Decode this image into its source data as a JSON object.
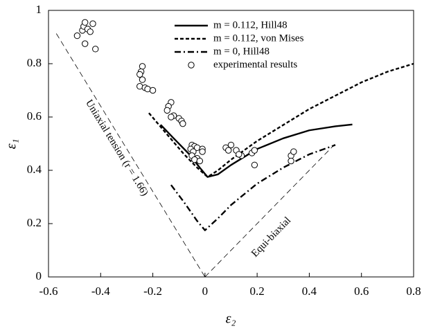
{
  "chart_data": {
    "type": "line",
    "xlabel": "ε₂",
    "ylabel": "ε₁",
    "xlim": [
      -0.6,
      0.8
    ],
    "xticks": [
      -0.6,
      -0.4,
      -0.2,
      0,
      0.2,
      0.4,
      0.6,
      0.8
    ],
    "ylim": [
      0,
      1
    ],
    "yticks": [
      0,
      0.2,
      0.4,
      0.6,
      0.8,
      1
    ],
    "grid": false,
    "legend": "top-right",
    "series": [
      {
        "name": "m = 0.112, Hill48",
        "color": "#000000",
        "style": "solid",
        "x": [
          -0.17,
          -0.12,
          -0.06,
          -0.02,
          0.01,
          0.05,
          0.1,
          0.2,
          0.3,
          0.4,
          0.5,
          0.565
        ],
        "values": [
          0.571,
          0.52,
          0.46,
          0.41,
          0.375,
          0.385,
          0.42,
          0.48,
          0.52,
          0.55,
          0.565,
          0.572
        ]
      },
      {
        "name": "m = 0.112, von Mises",
        "color": "#000000",
        "style": "dotted",
        "x": [
          -0.215,
          -0.15,
          -0.08,
          -0.03,
          0.01,
          0.05,
          0.1,
          0.2,
          0.3,
          0.4,
          0.5,
          0.6,
          0.7,
          0.8
        ],
        "values": [
          0.615,
          0.54,
          0.46,
          0.41,
          0.375,
          0.4,
          0.44,
          0.51,
          0.57,
          0.63,
          0.68,
          0.73,
          0.77,
          0.8
        ]
      },
      {
        "name": "m = 0, Hill48",
        "color": "#000000",
        "style": "dashdot",
        "x": [
          -0.13,
          -0.08,
          -0.03,
          0,
          0.05,
          0.1,
          0.2,
          0.3,
          0.4,
          0.5
        ],
        "values": [
          0.345,
          0.28,
          0.21,
          0.175,
          0.22,
          0.27,
          0.35,
          0.41,
          0.46,
          0.495
        ]
      },
      {
        "name": "experimental results",
        "color": "#000000",
        "style": "circles",
        "x": [
          -0.49,
          -0.47,
          -0.465,
          -0.46,
          -0.45,
          -0.44,
          -0.43,
          -0.46,
          -0.42,
          -0.24,
          -0.245,
          -0.25,
          -0.24,
          -0.25,
          -0.23,
          -0.22,
          -0.2,
          -0.13,
          -0.14,
          -0.145,
          -0.12,
          -0.13,
          -0.1,
          -0.09,
          -0.085,
          -0.05,
          -0.04,
          -0.055,
          -0.03,
          -0.045,
          -0.01,
          -0.05,
          -0.03,
          -0.04,
          -0.02,
          -0.01,
          0.08,
          0.1,
          0.09,
          0.12,
          0.14,
          0.13,
          0.18,
          0.19,
          0.19,
          0.33,
          0.34,
          0.33
        ],
        "values": [
          0.905,
          0.925,
          0.94,
          0.955,
          0.93,
          0.92,
          0.95,
          0.875,
          0.855,
          0.79,
          0.77,
          0.76,
          0.74,
          0.715,
          0.71,
          0.705,
          0.7,
          0.655,
          0.64,
          0.625,
          0.605,
          0.6,
          0.595,
          0.585,
          0.575,
          0.495,
          0.49,
          0.48,
          0.485,
          0.47,
          0.48,
          0.455,
          0.445,
          0.44,
          0.435,
          0.47,
          0.485,
          0.495,
          0.475,
          0.475,
          0.455,
          0.46,
          0.465,
          0.475,
          0.42,
          0.455,
          0.47,
          0.435
        ]
      }
    ],
    "reference_lines": [
      {
        "label": "Uniaxial tension (r = 1.66)",
        "x": [
          -0.57,
          0
        ],
        "values": [
          0.913,
          0
        ]
      },
      {
        "label": "Equi-biaxial",
        "x": [
          0,
          0.5
        ],
        "values": [
          0,
          0.5
        ]
      }
    ]
  }
}
